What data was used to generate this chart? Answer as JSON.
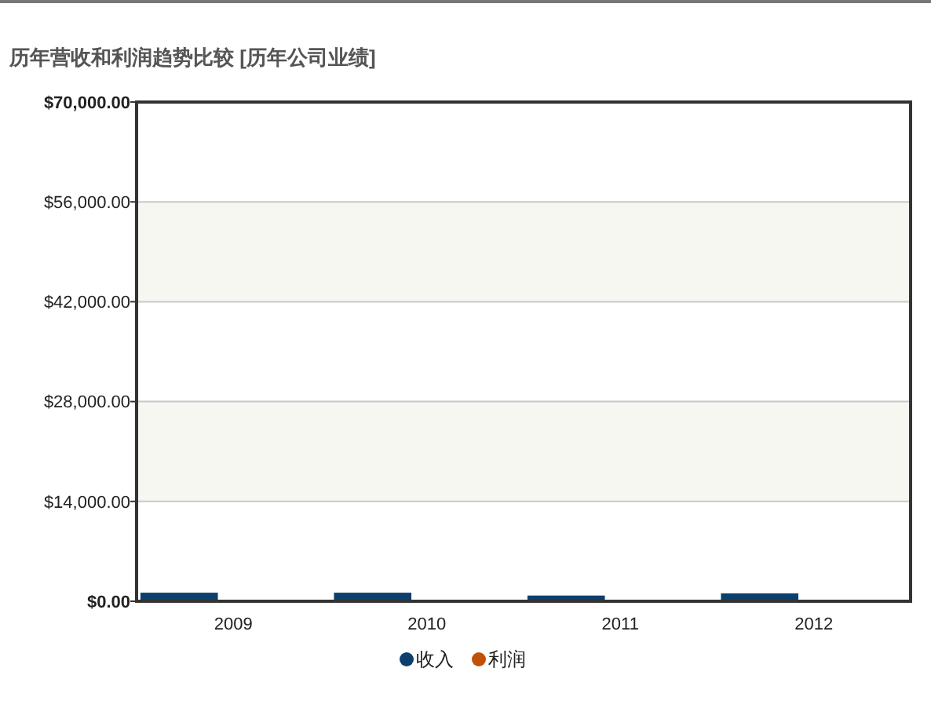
{
  "chart_data": {
    "type": "bar",
    "title": "历年营收和利润趋势比较 [历年公司业绩]",
    "categories": [
      "2009",
      "2010",
      "2011",
      "2012"
    ],
    "series": [
      {
        "name": "收入",
        "color": "#0c3f6e",
        "values": [
          1200,
          1200,
          800,
          1100
        ]
      },
      {
        "name": "利润",
        "color": "#c0500a",
        "values": [
          0,
          0,
          0,
          0
        ]
      }
    ],
    "ylim": [
      0,
      70000
    ],
    "yticks": [
      {
        "value": 0,
        "label": "$0.00"
      },
      {
        "value": 14000,
        "label": "$14,000.00"
      },
      {
        "value": 28000,
        "label": "$28,000.00"
      },
      {
        "value": 42000,
        "label": "$42,000.00"
      },
      {
        "value": 56000,
        "label": "$56,000.00"
      },
      {
        "value": 70000,
        "label": "$70,000.00"
      }
    ],
    "grid": "y",
    "legend": "bottom"
  }
}
